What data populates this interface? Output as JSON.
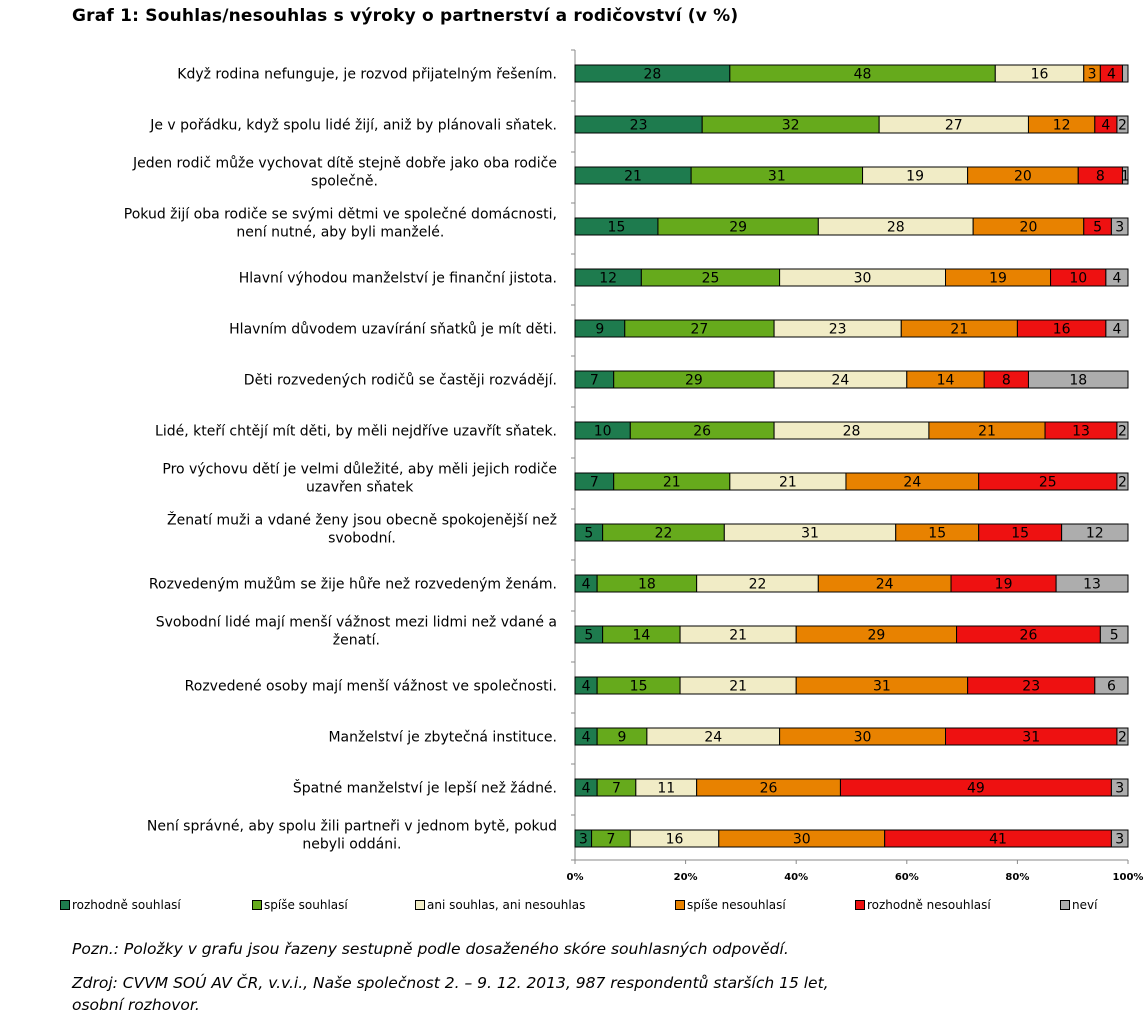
{
  "title": "Graf 1: Souhlas/nesouhlas s výroky o partnerství a rodičovství (v %)",
  "chart_data": {
    "type": "bar",
    "orientation": "horizontal",
    "stacked": true,
    "title": "Graf 1: Souhlas/nesouhlas s výroky o partnerství a rodičovství (v %)",
    "xlim": [
      0,
      100
    ],
    "x_ticks": [
      "0%",
      "20%",
      "40%",
      "60%",
      "80%",
      "100%"
    ],
    "legend_position": "bottom",
    "categories": [
      [
        "Když rodina nefunguje, je rozvod přijatelným řešením."
      ],
      [
        "Je v pořádku, když spolu lidé žijí, aniž by plánovali sňatek."
      ],
      [
        "Jeden rodič může vychovat dítě stejně dobře jako oba rodiče",
        "společně."
      ],
      [
        "Pokud žijí oba rodiče se svými dětmi ve společné domácnosti,",
        "není nutné, aby byli manželé."
      ],
      [
        "Hlavní výhodou manželství je finanční jistota."
      ],
      [
        "Hlavním důvodem uzavírání sňatků je mít děti."
      ],
      [
        "Děti rozvedených rodičů se častěji rozvádějí."
      ],
      [
        "Lidé, kteří chtějí mít děti, by měli nejdříve uzavřít sňatek."
      ],
      [
        "Pro výchovu dětí je velmi důležité, aby měli jejich rodiče",
        "uzavřen sňatek"
      ],
      [
        "Ženatí muži a vdané ženy jsou obecně spokojenější než",
        "svobodní."
      ],
      [
        "Rozvedeným mužům se žije hůře než rozvedeným ženám."
      ],
      [
        "Svobodní lidé mají menší vážnost mezi lidmi než vdané a",
        "ženatí."
      ],
      [
        "Rozvedené osoby mají menší vážnost ve společnosti."
      ],
      [
        "Manželství je zbytečná instituce."
      ],
      [
        "Špatné manželství je lepší než žádné."
      ],
      [
        "Není správné, aby spolu žili partneři v jednom bytě, pokud",
        "nebyli oddáni."
      ]
    ],
    "series": [
      {
        "name": "rozhodně souhlasí",
        "color": "#1e7b4e",
        "values": [
          28,
          23,
          21,
          15,
          12,
          9,
          7,
          10,
          7,
          5,
          4,
          5,
          4,
          4,
          4,
          3
        ]
      },
      {
        "name": "spíše souhlasí",
        "color": "#66aa1c",
        "values": [
          48,
          32,
          31,
          29,
          25,
          27,
          29,
          26,
          21,
          22,
          18,
          14,
          15,
          9,
          7,
          7
        ]
      },
      {
        "name": "ani souhlas, ani nesouhlas",
        "color": "#f1ecc6",
        "values": [
          16,
          27,
          19,
          28,
          30,
          23,
          24,
          28,
          21,
          31,
          22,
          21,
          21,
          24,
          11,
          16
        ]
      },
      {
        "name": "spíše nesouhlasí",
        "color": "#e88200",
        "values": [
          3,
          12,
          20,
          20,
          19,
          21,
          14,
          21,
          24,
          15,
          24,
          29,
          31,
          30,
          26,
          30
        ]
      },
      {
        "name": "rozhodně nesouhlasí",
        "color": "#ee1111",
        "values": [
          4,
          4,
          8,
          5,
          10,
          16,
          8,
          13,
          25,
          15,
          19,
          26,
          23,
          31,
          49,
          41
        ]
      },
      {
        "name": "neví",
        "color": "#adadad",
        "values": [
          1,
          2,
          1,
          3,
          4,
          4,
          18,
          2,
          2,
          12,
          13,
          5,
          6,
          2,
          3,
          3
        ]
      }
    ],
    "segment_labels": [
      [
        "28",
        "48",
        "16",
        "3",
        "4",
        ""
      ],
      [
        "23",
        "32",
        "27",
        "12",
        "4",
        "2"
      ],
      [
        "21",
        "31",
        "19",
        "20",
        "8",
        "1"
      ],
      [
        "15",
        "29",
        "28",
        "20",
        "5",
        "3"
      ],
      [
        "12",
        "25",
        "30",
        "19",
        "10",
        "4"
      ],
      [
        "9",
        "27",
        "23",
        "21",
        "16",
        "4"
      ],
      [
        "7",
        "29",
        "24",
        "14",
        "8",
        "18"
      ],
      [
        "10",
        "26",
        "28",
        "21",
        "13",
        "2"
      ],
      [
        "7",
        "21",
        "21",
        "24",
        "25",
        "2"
      ],
      [
        "5",
        "22",
        "31",
        "15",
        "15",
        "12"
      ],
      [
        "4",
        "18",
        "22",
        "24",
        "19",
        "13"
      ],
      [
        "5",
        "14",
        "21",
        "29",
        "26",
        "5"
      ],
      [
        "4",
        "15",
        "21",
        "31",
        "23",
        "6"
      ],
      [
        "4",
        "9",
        "24",
        "30",
        "31",
        "2"
      ],
      [
        "4",
        "7",
        "11",
        "26",
        "49",
        "3"
      ],
      [
        "3",
        "7",
        "16",
        "30",
        "41",
        "3"
      ]
    ]
  },
  "notes": [
    "Pozn.: Položky v grafu jsou řazeny sestupně podle dosaženého skóre souhlasných odpovědí.",
    "Zdroj: CVVM SOÚ AV ČR, v.v.i., Naše společnost 2. – 9. 12. 2013, 987 respondentů starších 15 let,",
    "osobní rozhovor."
  ]
}
